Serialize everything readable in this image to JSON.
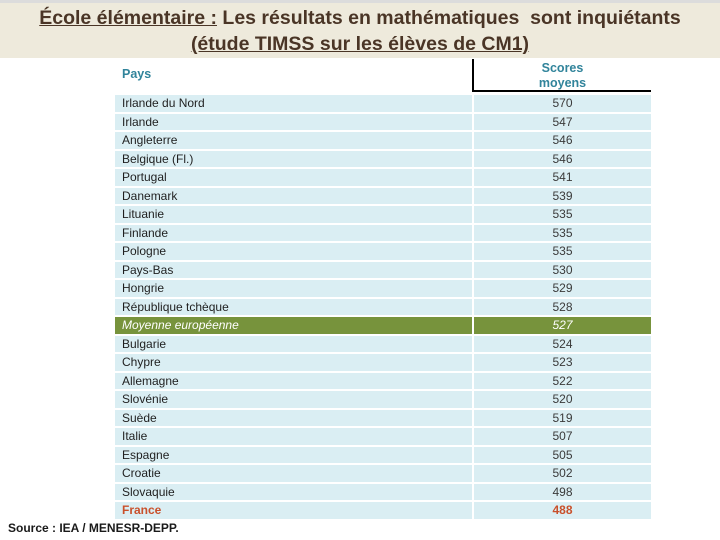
{
  "title": {
    "prefix": "École élémentaire :",
    "rest": " Les résultats en mathématiques  sont inquiétants",
    "line2": "(étude TIMSS sur les élèves de CM1)"
  },
  "source": "Source : IEA / MENESR-DEPP.",
  "colors": {
    "band_bg": "#EEEADC",
    "title_text": "#4A3526",
    "header_text": "#31849B",
    "row_bg": "#DAEEF3",
    "highlight_bg": "#77933C",
    "highlight_text": "#FFFFFF",
    "france_text": "#C9502B"
  },
  "chart_data": {
    "type": "table",
    "title": "École élémentaire : Les résultats en mathématiques sont inquiétants (étude TIMSS sur les élèves de CM1)",
    "columns": {
      "country": "Pays",
      "score": "Scores moyens"
    },
    "rows": [
      {
        "country": "Irlande du Nord",
        "score": 570,
        "style": "normal"
      },
      {
        "country": "Irlande",
        "score": 547,
        "style": "normal"
      },
      {
        "country": "Angleterre",
        "score": 546,
        "style": "normal"
      },
      {
        "country": "Belgique (Fl.)",
        "score": 546,
        "style": "normal"
      },
      {
        "country": "Portugal",
        "score": 541,
        "style": "normal"
      },
      {
        "country": "Danemark",
        "score": 539,
        "style": "normal"
      },
      {
        "country": "Lituanie",
        "score": 535,
        "style": "normal"
      },
      {
        "country": "Finlande",
        "score": 535,
        "style": "normal"
      },
      {
        "country": "Pologne",
        "score": 535,
        "style": "normal"
      },
      {
        "country": "Pays-Bas",
        "score": 530,
        "style": "normal"
      },
      {
        "country": "Hongrie",
        "score": 529,
        "style": "normal"
      },
      {
        "country": "République tchèque",
        "score": 528,
        "style": "normal"
      },
      {
        "country": "Moyenne européenne",
        "score": 527,
        "style": "highlight"
      },
      {
        "country": "Bulgarie",
        "score": 524,
        "style": "normal"
      },
      {
        "country": "Chypre",
        "score": 523,
        "style": "normal"
      },
      {
        "country": "Allemagne",
        "score": 522,
        "style": "normal"
      },
      {
        "country": "Slovénie",
        "score": 520,
        "style": "normal"
      },
      {
        "country": "Suède",
        "score": 519,
        "style": "normal"
      },
      {
        "country": "Italie",
        "score": 507,
        "style": "normal"
      },
      {
        "country": "Espagne",
        "score": 505,
        "style": "normal"
      },
      {
        "country": "Croatie",
        "score": 502,
        "style": "normal"
      },
      {
        "country": "Slovaquie",
        "score": 498,
        "style": "normal"
      },
      {
        "country": "France",
        "score": 488,
        "style": "france"
      }
    ]
  }
}
